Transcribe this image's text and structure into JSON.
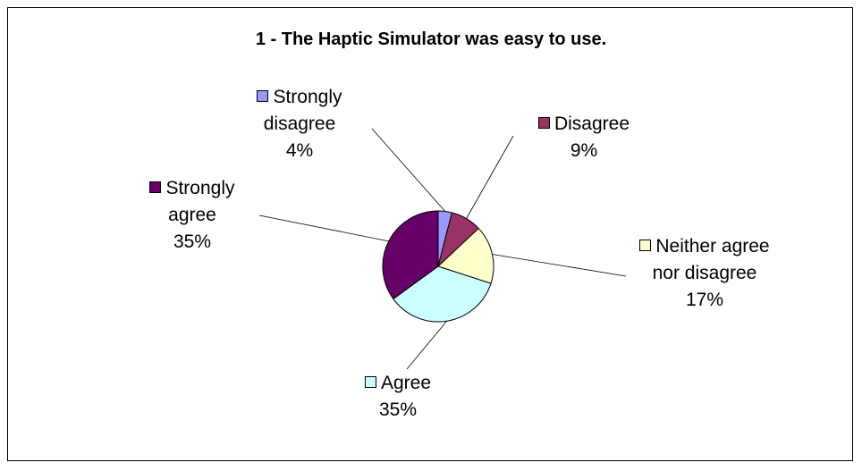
{
  "chart_data": {
    "type": "pie",
    "title": "1 - The Haptic Simulator was easy to use.",
    "slices": [
      {
        "name": "Strongly disagree",
        "value": 4,
        "label_lines": [
          "Strongly",
          "disagree",
          "4%"
        ],
        "color": "#9999ff"
      },
      {
        "name": "Disagree",
        "value": 9,
        "label_lines": [
          "Disagree",
          "9%"
        ],
        "color": "#993366"
      },
      {
        "name": "Neither agree nor disagree",
        "value": 17,
        "label_lines": [
          "Neither agree",
          "nor disagree",
          "17%"
        ],
        "color": "#ffffcc"
      },
      {
        "name": "Agree",
        "value": 35,
        "label_lines": [
          "Agree",
          "35%"
        ],
        "color": "#ccffff"
      },
      {
        "name": "Strongly agree",
        "value": 35,
        "label_lines": [
          "Strongly",
          "agree",
          "35%"
        ],
        "color": "#660066"
      }
    ]
  }
}
